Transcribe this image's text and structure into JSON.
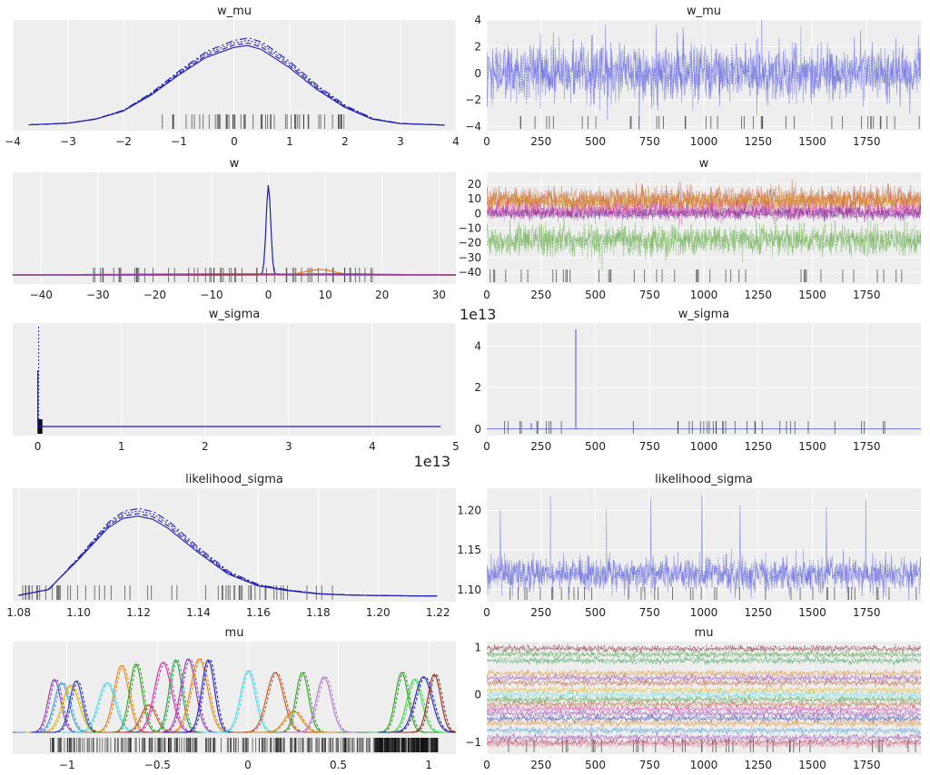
{
  "figure": {
    "background": "#ffffff",
    "panel_bg": "#eeeeee",
    "grid": "#ffffff"
  },
  "chart_data": [
    {
      "id": "w_mu_kde",
      "type": "line",
      "title": "w_mu",
      "xticks": [
        -4,
        -3,
        -2,
        -1,
        0,
        1,
        2,
        3,
        4
      ],
      "xlim": [
        -4.0,
        4.0
      ],
      "yticks": [],
      "grid": true,
      "color": "#1f1fb4",
      "series": [
        {
          "x": [
            -3.7,
            -3.0,
            -2.5,
            -2.0,
            -1.5,
            -1.0,
            -0.5,
            0.0,
            0.25,
            0.5,
            1.0,
            1.5,
            2.0,
            2.5,
            3.0,
            3.8
          ],
          "y": [
            0.002,
            0.01,
            0.03,
            0.07,
            0.15,
            0.25,
            0.34,
            0.39,
            0.4,
            0.38,
            0.29,
            0.18,
            0.09,
            0.03,
            0.008,
            0.001
          ]
        }
      ],
      "rug_ranges": [
        [
          -1.3,
          2.2
        ]
      ]
    },
    {
      "id": "w_mu_trace",
      "type": "line",
      "title": "w_mu",
      "xticks": [
        0,
        250,
        500,
        750,
        1000,
        1250,
        1500,
        1750
      ],
      "xlim": [
        0,
        2000
      ],
      "yticks": [
        -4,
        -2,
        0,
        2,
        4
      ],
      "ylim": [
        -4.3,
        4.0
      ],
      "grid": true,
      "series": [
        {
          "color": "#4b50e0",
          "center": 0.0,
          "spread": 1.0,
          "max": 3.7,
          "min": -3.3
        }
      ],
      "rug_ranges": [
        [
          0,
          2000
        ]
      ]
    },
    {
      "id": "w_kde",
      "type": "line",
      "title": "w",
      "xticks": [
        -40,
        -30,
        -20,
        -10,
        0,
        10,
        20,
        30
      ],
      "xlim": [
        -45,
        33
      ],
      "yticks": [],
      "grid": true,
      "series": [
        {
          "color": "#1f1fb4",
          "peak_x": 0.0,
          "peak_y": 1.0,
          "width": 0.4
        },
        {
          "color": "#e8790c",
          "peak_x": 9.0,
          "peak_y": 0.06,
          "width": 2.5
        },
        {
          "color": "#3b9a2c",
          "peak_x": -17.0,
          "peak_y": 0.01,
          "width": 12
        },
        {
          "color": "#b02a2a",
          "peak_x": 12.0,
          "peak_y": 0.012,
          "width": 8
        },
        {
          "color": "#9a3ab0",
          "peak_x": -5.0,
          "peak_y": 0.012,
          "width": 14
        }
      ],
      "rug_ranges": [
        [
          -31,
          20
        ]
      ]
    },
    {
      "id": "w_trace",
      "type": "line",
      "title": "w",
      "xticks": [
        0,
        250,
        500,
        750,
        1000,
        1250,
        1500,
        1750
      ],
      "xlim": [
        0,
        2000
      ],
      "yticks": [
        -40,
        -30,
        -20,
        -10,
        0,
        10,
        20
      ],
      "ylim": [
        -48,
        28
      ],
      "grid": true,
      "series": [
        {
          "color": "#b8562a",
          "center": 10,
          "spread": 4
        },
        {
          "color": "#e0851a",
          "center": 8,
          "spread": 3
        },
        {
          "color": "#d22fa6",
          "center": 2,
          "spread": 3
        },
        {
          "color": "#7a2a9a",
          "center": 0,
          "spread": 2
        },
        {
          "color": "#5aa83c",
          "center": -18,
          "spread": 5
        }
      ],
      "rug_ranges": [
        [
          0,
          2000
        ]
      ]
    },
    {
      "id": "w_sigma_kde",
      "type": "line",
      "title": "w_sigma",
      "xticks": [
        0,
        1,
        2,
        3,
        4,
        5
      ],
      "xlim": [
        -0.3,
        5.0
      ],
      "x_offset_label": "1e13",
      "yticks": [],
      "grid": true,
      "color": "#1f1fb4",
      "series": [
        {
          "peak_x": 0.0,
          "peak_y": 1.0,
          "tail_end": 4.82
        }
      ],
      "rug_ranges": [
        [
          0,
          0.05
        ]
      ]
    },
    {
      "id": "w_sigma_trace",
      "type": "line",
      "title": "w_sigma",
      "xticks": [
        0,
        250,
        500,
        750,
        1000,
        1250,
        1500,
        1750
      ],
      "xlim": [
        0,
        2000
      ],
      "yticks": [
        0,
        2,
        4
      ],
      "ylim": [
        -0.3,
        5.1
      ],
      "y_offset_label": "1e13",
      "grid": true,
      "series": [
        {
          "color": "#4b50e0",
          "spike_x": 410,
          "spike_y": 4.8
        }
      ],
      "rug_ranges": [
        [
          0,
          2000
        ]
      ]
    },
    {
      "id": "likelihood_sigma_kde",
      "type": "line",
      "title": "likelihood_sigma",
      "xticks": [
        1.08,
        1.1,
        1.12,
        1.14,
        1.16,
        1.18,
        1.2,
        1.22
      ],
      "xlim": [
        1.078,
        1.226
      ],
      "yticks": [],
      "grid": true,
      "color": "#1f1fb4",
      "series": [
        {
          "x": [
            1.08,
            1.09,
            1.1,
            1.11,
            1.115,
            1.12,
            1.125,
            1.13,
            1.14,
            1.15,
            1.16,
            1.17,
            1.18,
            1.19,
            1.2,
            1.22
          ],
          "y": [
            0.01,
            0.08,
            0.45,
            0.85,
            0.97,
            1.0,
            0.96,
            0.85,
            0.55,
            0.28,
            0.13,
            0.07,
            0.03,
            0.015,
            0.008,
            0.002
          ]
        }
      ],
      "rug_ranges": [
        [
          1.08,
          1.19
        ]
      ]
    },
    {
      "id": "likelihood_sigma_trace",
      "type": "line",
      "title": "likelihood_sigma",
      "xticks": [
        0,
        250,
        500,
        750,
        1000,
        1250,
        1500,
        1750
      ],
      "xlim": [
        0,
        2000
      ],
      "yticks": [
        1.1,
        1.15,
        1.2
      ],
      "ylim": [
        1.085,
        1.228
      ],
      "grid": true,
      "series": [
        {
          "color": "#4b50e0",
          "center": 1.12,
          "spread": 0.01,
          "max": 1.222,
          "min": 1.088
        }
      ],
      "rug_ranges": [
        [
          0,
          2000
        ]
      ]
    },
    {
      "id": "mu_kde",
      "type": "line",
      "title": "mu",
      "xticks": [
        -1.0,
        -0.5,
        0.0,
        0.5,
        1.0
      ],
      "xlim": [
        -1.3,
        1.15
      ],
      "yticks": [],
      "grid": true,
      "series": [
        {
          "color": "#8e3ab0",
          "peak": -1.07,
          "h": 0.62
        },
        {
          "color": "#3a9bd8",
          "peak": -1.03,
          "h": 0.58
        },
        {
          "color": "#e0b20e",
          "peak": -0.98,
          "h": 0.55
        },
        {
          "color": "#2a3ab0",
          "peak": -0.95,
          "h": 0.6
        },
        {
          "color": "#e0851a",
          "peak": -0.7,
          "h": 0.78
        },
        {
          "color": "#4ad6e6",
          "peak": -0.78,
          "h": 0.58
        },
        {
          "color": "#3b9a2c",
          "peak": -0.62,
          "h": 0.8
        },
        {
          "color": "#b8562a",
          "peak": -0.55,
          "h": 0.32
        },
        {
          "color": "#d22fa6",
          "peak": -0.47,
          "h": 0.82
        },
        {
          "color": "#2a9a4a",
          "peak": -0.4,
          "h": 0.85
        },
        {
          "color": "#8e3ab0",
          "peak": -0.33,
          "h": 0.86
        },
        {
          "color": "#e0851a",
          "peak": -0.27,
          "h": 0.86
        },
        {
          "color": "#1f1fb4",
          "peak": -0.22,
          "h": 0.85
        },
        {
          "color": "#4ad6e6",
          "peak": 0.0,
          "h": 0.72
        },
        {
          "color": "#b8562a",
          "peak": 0.15,
          "h": 0.7
        },
        {
          "color": "#3b9a2c",
          "peak": 0.3,
          "h": 0.7
        },
        {
          "color": "#b07ad0",
          "peak": 0.42,
          "h": 0.65
        },
        {
          "color": "#e0851a",
          "peak": 0.25,
          "h": 0.25
        },
        {
          "color": "#2a9a2a",
          "peak": 0.85,
          "h": 0.7
        },
        {
          "color": "#3ad64a",
          "peak": 0.92,
          "h": 0.62
        },
        {
          "color": "#1f1fb4",
          "peak": 0.97,
          "h": 0.65
        },
        {
          "color": "#8a2a20",
          "peak": 1.03,
          "h": 0.68
        }
      ],
      "rug_ranges": [
        [
          -1.1,
          0.7
        ],
        [
          0.7,
          1.05
        ]
      ]
    },
    {
      "id": "mu_trace",
      "type": "line",
      "title": "mu",
      "xticks": [
        0,
        250,
        500,
        750,
        1000,
        1250,
        1500,
        1750
      ],
      "xlim": [
        0,
        2000
      ],
      "yticks": [
        -1,
        0,
        1
      ],
      "ylim": [
        -1.25,
        1.12
      ],
      "grid": true,
      "series": [
        {
          "color": "#7a1a2a",
          "center": 0.97
        },
        {
          "color": "#3b9a2c",
          "center": 0.85
        },
        {
          "color": "#2a9a4a",
          "center": 0.72
        },
        {
          "color": "#e0851a",
          "center": 0.45
        },
        {
          "color": "#8e3ab0",
          "center": 0.35
        },
        {
          "color": "#b8562a",
          "center": 0.25
        },
        {
          "color": "#e0b20e",
          "center": 0.1
        },
        {
          "color": "#4ad6e6",
          "center": 0.0
        },
        {
          "color": "#3b9a2c",
          "center": -0.1
        },
        {
          "color": "#b8562a",
          "center": -0.2
        },
        {
          "color": "#d22fa6",
          "center": -0.3
        },
        {
          "color": "#8e3ab0",
          "center": -0.4
        },
        {
          "color": "#2a3ab0",
          "center": -0.5
        },
        {
          "color": "#e0851a",
          "center": -0.6
        },
        {
          "color": "#3a9bd8",
          "center": -0.75
        },
        {
          "color": "#8e3ab0",
          "center": -0.9
        },
        {
          "color": "#b02a4a",
          "center": -1.0
        },
        {
          "color": "#e08aa0",
          "center": -1.05
        }
      ],
      "rug_ranges": [
        [
          0,
          2000
        ]
      ]
    }
  ]
}
